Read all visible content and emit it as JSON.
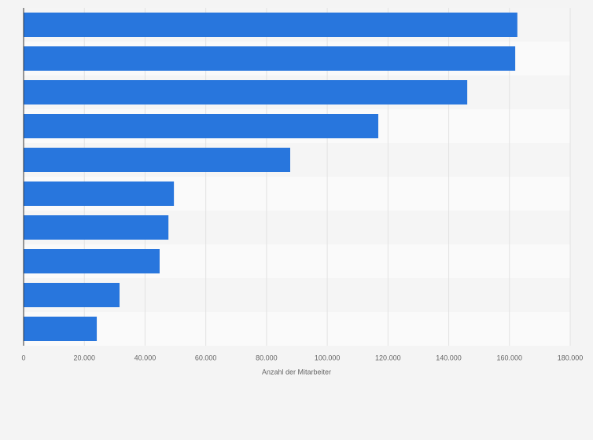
{
  "chart_data": {
    "type": "bar",
    "orientation": "horizontal",
    "x_label": "Anzahl der Mitarbeiter",
    "categories": [
      null,
      null,
      null,
      null,
      null,
      null,
      null,
      null,
      null,
      null
    ],
    "values": [
      162600,
      161900,
      146100,
      116800,
      87800,
      49500,
      47700,
      44800,
      31600,
      24100
    ],
    "color": "#2876dd",
    "xlim": [
      0,
      180000
    ],
    "xticks": [
      0,
      {
        "value": 20000,
        "label": "20.000"
      },
      {
        "value": 40000,
        "label": "40.000"
      },
      {
        "value": 60000,
        "label": "60.000"
      },
      {
        "value": 80000,
        "label": "80.000"
      },
      {
        "value": 100000,
        "label": "100.000"
      },
      {
        "value": 120000,
        "label": "120.000"
      },
      {
        "value": 140000,
        "label": "140.000"
      },
      {
        "value": 160000,
        "label": "160.000"
      },
      {
        "value": 180000,
        "label": "180.000"
      }
    ],
    "grid": true
  }
}
